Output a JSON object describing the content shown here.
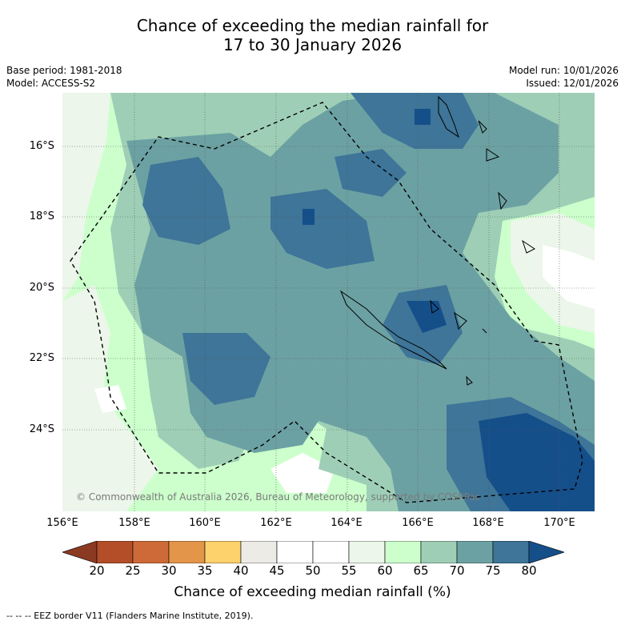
{
  "title": {
    "line1": "Chance of exceeding the median rainfall for",
    "line2": "17 to 30 January 2026"
  },
  "meta": {
    "base_period": "Base period: 1981-2018",
    "model": "Model: ACCESS-S2",
    "model_run": "Model run: 10/01/2026",
    "issued": "Issued: 12/01/2026"
  },
  "map": {
    "lat_labels": [
      "16°S",
      "18°S",
      "20°S",
      "22°S",
      "24°S"
    ],
    "lon_labels": [
      "156°E",
      "158°E",
      "160°E",
      "162°E",
      "164°E",
      "166°E",
      "168°E",
      "170°E"
    ],
    "copyright": "© Commonwealth of Australia 2026, Bureau of Meteorology, supported by COSPPac",
    "region": "New Caledonia / Coral Sea"
  },
  "colorbar": {
    "ticks": [
      "20",
      "25",
      "30",
      "35",
      "40",
      "45",
      "50",
      "55",
      "60",
      "65",
      "70",
      "75",
      "80"
    ],
    "colors": [
      "#8a3a22",
      "#b34e28",
      "#cd6a37",
      "#e39549",
      "#fdd16b",
      "#ecebe6",
      "#ffffff",
      "#ffffff",
      "#ecf6ea",
      "#ccffcc",
      "#9ecfb6",
      "#6ca1a3",
      "#3e7598",
      "#154f8a"
    ],
    "label": "Chance of exceeding median rainfall (%)"
  },
  "legend": {
    "eez": "--  --  -- EEZ border V11 (Flanders Marine Institute, 2019)."
  }
}
